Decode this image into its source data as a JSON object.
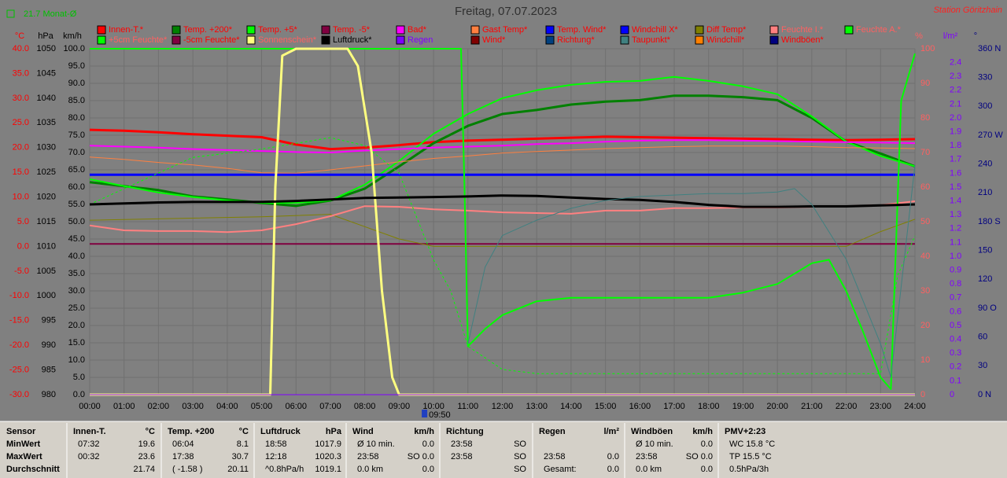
{
  "header": {
    "title": "Freitag, 07.07.2023",
    "station": "Station Göritzhain",
    "month_avg": "21.7 Monat-Ø"
  },
  "chart_data": {
    "type": "line",
    "xlim": [
      0,
      24
    ],
    "xticks": [
      {
        "value": 0,
        "label": "00:00"
      },
      {
        "value": 1,
        "label": "01:00"
      },
      {
        "value": 2,
        "label": "02:00"
      },
      {
        "value": 3,
        "label": "03:00"
      },
      {
        "value": 4,
        "label": "04:00"
      },
      {
        "value": 5,
        "label": "05:00"
      },
      {
        "value": 6,
        "label": "06:00"
      },
      {
        "value": 7,
        "label": "07:00"
      },
      {
        "value": 8,
        "label": "08:00"
      },
      {
        "value": 9,
        "label": "09:00"
      },
      {
        "value": 10,
        "label": "10:00"
      },
      {
        "value": 11,
        "label": "11:00"
      },
      {
        "value": 12,
        "label": "12:00"
      },
      {
        "value": 13,
        "label": "13:00"
      },
      {
        "value": 14,
        "label": "14:00"
      },
      {
        "value": 15,
        "label": "15:00"
      },
      {
        "value": 16,
        "label": "16:00"
      },
      {
        "value": 17,
        "label": "17:00"
      },
      {
        "value": 18,
        "label": "18:00"
      },
      {
        "value": 19,
        "label": "19:00"
      },
      {
        "value": 20,
        "label": "20:00"
      },
      {
        "value": 21,
        "label": "21:00"
      },
      {
        "value": 22,
        "label": "22:00"
      },
      {
        "value": 23,
        "label": "23:00"
      },
      {
        "value": 24,
        "label": "24:00"
      }
    ],
    "x": [
      0,
      1,
      2,
      3,
      4,
      5,
      6,
      7,
      8,
      9,
      10,
      11,
      12,
      13,
      14,
      15,
      16,
      17,
      18,
      19,
      20,
      21,
      22,
      23,
      24
    ],
    "grid": true,
    "marker": "09:50",
    "axes": [
      {
        "unit": "°C",
        "side": "left",
        "color": "#ff0000",
        "lim": [
          -30,
          40
        ],
        "ticks": [
          {
            "value": -30,
            "label": "-30.0"
          },
          {
            "value": -25,
            "label": "-25.0"
          },
          {
            "value": -20,
            "label": "-20.0"
          },
          {
            "value": -15,
            "label": "-15.0"
          },
          {
            "value": -10,
            "label": "-10.0"
          },
          {
            "value": -5,
            "label": "-5.0"
          },
          {
            "value": 0,
            "label": "0.0"
          },
          {
            "value": 5,
            "label": "5.0"
          },
          {
            "value": 10,
            "label": "10.0"
          },
          {
            "value": 15,
            "label": "15.0"
          },
          {
            "value": 20,
            "label": "20.0"
          },
          {
            "value": 25,
            "label": "25.0"
          },
          {
            "value": 30,
            "label": "30.0"
          },
          {
            "value": 35,
            "label": "35.0"
          },
          {
            "value": 40,
            "label": "40.0"
          }
        ]
      },
      {
        "unit": "hPa",
        "side": "left",
        "color": "#000000",
        "lim": [
          980,
          1050
        ],
        "ticks": [
          980,
          985,
          990,
          995,
          1000,
          1005,
          1010,
          1015,
          1020,
          1025,
          1030,
          1035,
          1040,
          1045,
          1050
        ]
      },
      {
        "unit": "km/h",
        "side": "left",
        "color": "#000000",
        "lim": [
          0,
          100
        ],
        "ticks": [
          {
            "value": 0,
            "label": "0.0"
          },
          {
            "value": 5,
            "label": "5.0"
          },
          {
            "value": 10,
            "label": "10.0"
          },
          {
            "value": 15,
            "label": "15.0"
          },
          {
            "value": 20,
            "label": "20.0"
          },
          {
            "value": 25,
            "label": "25.0"
          },
          {
            "value": 30,
            "label": "30.0"
          },
          {
            "value": 35,
            "label": "35.0"
          },
          {
            "value": 40,
            "label": "40.0"
          },
          {
            "value": 45,
            "label": "45.0"
          },
          {
            "value": 50,
            "label": "50.0"
          },
          {
            "value": 55,
            "label": "55.0"
          },
          {
            "value": 60,
            "label": "60.0"
          },
          {
            "value": 65,
            "label": "65.0"
          },
          {
            "value": 70,
            "label": "70.0"
          },
          {
            "value": 75,
            "label": "75.0"
          },
          {
            "value": 80,
            "label": "80.0"
          },
          {
            "value": 85,
            "label": "85.0"
          },
          {
            "value": 90,
            "label": "90.0"
          },
          {
            "value": 95,
            "label": "95.0"
          },
          {
            "value": 100,
            "label": "100.0"
          }
        ]
      },
      {
        "unit": "%",
        "side": "right",
        "color": "#ff6060",
        "lim": [
          0,
          100
        ],
        "ticks": [
          0,
          10,
          20,
          30,
          40,
          50,
          60,
          70,
          80,
          90,
          100
        ]
      },
      {
        "unit": "l/m²",
        "side": "right",
        "color": "#8000ff",
        "lim": [
          0,
          2.5
        ],
        "ticks": [
          0,
          0.1,
          0.2,
          0.3,
          0.4,
          0.5,
          0.6,
          0.7,
          0.8,
          0.9,
          {
            "value": 1,
            "label": "1.0"
          },
          1.1,
          1.2,
          1.3,
          1.4,
          1.5,
          1.6,
          1.7,
          1.8,
          1.9,
          {
            "value": 2,
            "label": "2.0"
          },
          2.1,
          2.2,
          2.3,
          2.4
        ]
      },
      {
        "unit": "°",
        "side": "right",
        "color": "#000080",
        "lim": [
          0,
          360
        ],
        "ticks": [
          {
            "value": 0,
            "label": "0 N"
          },
          30,
          60,
          {
            "value": 90,
            "label": "90 O"
          },
          120,
          150,
          {
            "value": 180,
            "label": "180 S"
          },
          210,
          240,
          {
            "value": 270,
            "label": "270 W"
          },
          300,
          330,
          {
            "value": 360,
            "label": "360 N"
          }
        ]
      }
    ],
    "series": [
      {
        "name": "Innen-T.*",
        "color": "#ff0000",
        "axis": 0,
        "width": 3,
        "values": [
          23.6,
          23.4,
          23.1,
          22.7,
          22.4,
          22.1,
          20.6,
          19.7,
          20.0,
          20.5,
          21.1,
          21.4,
          21.6,
          21.8,
          22.0,
          22.2,
          22.1,
          22.0,
          21.9,
          21.8,
          21.7,
          21.6,
          21.5,
          21.6,
          21.7
        ]
      },
      {
        "name": "Temp. +200*",
        "color": "#008000",
        "axis": 0,
        "width": 3,
        "values": [
          13.0,
          12.2,
          11.4,
          10.1,
          9.5,
          8.8,
          8.2,
          9.3,
          11.7,
          16.2,
          20.9,
          24.4,
          26.8,
          27.6,
          28.7,
          29.3,
          29.6,
          30.5,
          30.5,
          30.2,
          29.6,
          26.0,
          21.2,
          18.8,
          16.2
        ]
      },
      {
        "name": "Temp. +5*",
        "color": "#00ff00",
        "axis": 0,
        "width": 2,
        "values": [
          13.6,
          12.2,
          10.9,
          10.0,
          9.3,
          8.8,
          8.8,
          9.3,
          12.5,
          17.3,
          22.8,
          26.8,
          30.0,
          31.6,
          32.7,
          33.3,
          33.5,
          34.3,
          33.5,
          32.4,
          30.8,
          26.3,
          21.2,
          18.3,
          16.2
        ]
      },
      {
        "name": "Temp. -5*",
        "color": "#800040",
        "axis": 0,
        "width": 2,
        "x": [
          0,
          24
        ],
        "values": [
          0.5,
          0.5
        ]
      },
      {
        "name": "Bad*",
        "color": "#ff00ff",
        "axis": 0,
        "width": 2,
        "values": [
          20.4,
          20.2,
          20.0,
          19.7,
          19.5,
          19.3,
          19.1,
          19.0,
          19.4,
          19.7,
          20.0,
          20.2,
          20.4,
          20.7,
          20.9,
          21.2,
          21.4,
          21.5,
          21.5,
          21.4,
          21.3,
          21.2,
          21.1,
          21.0,
          20.9
        ]
      },
      {
        "name": "Gast Temp*",
        "color": "#ff8040",
        "axis": 0,
        "width": 1,
        "values": [
          18.1,
          17.6,
          17.0,
          16.5,
          15.8,
          14.9,
          14.8,
          15.5,
          16.3,
          17.1,
          17.8,
          18.3,
          18.9,
          19.2,
          19.5,
          19.8,
          20.0,
          20.2,
          20.3,
          20.3,
          20.3,
          20.2,
          20.0,
          19.9,
          19.8
        ]
      },
      {
        "name": "Temp. Wind*",
        "color": "#0000ff"
      },
      {
        "name": "Windchill X*",
        "color": "#0000ff",
        "axis": 0,
        "width": 3,
        "x": [
          0,
          24
        ],
        "values": [
          14.5,
          14.5
        ]
      },
      {
        "name": "Diff Temp*",
        "color": "#808000",
        "axis": 0,
        "width": 1,
        "x": [
          0,
          5,
          7,
          8,
          9,
          10,
          22,
          23,
          24
        ],
        "values": [
          5.3,
          6.0,
          6.5,
          4.0,
          1.5,
          0,
          0,
          3,
          5.5
        ]
      },
      {
        "name": "Feuchte I.*",
        "color": "#ff8080",
        "axis": 3,
        "width": 2,
        "values": [
          48.9,
          47.5,
          47.3,
          47.3,
          47.0,
          47.5,
          49.3,
          51.6,
          54.5,
          54.3,
          53.6,
          53.2,
          52.7,
          52.5,
          52.3,
          53.2,
          53.2,
          53.9,
          53.9,
          54.1,
          54.1,
          54.3,
          54.5,
          54.8,
          55.9
        ]
      },
      {
        "name": "Feuchte A.*",
        "color": "#00ff00",
        "axis": 3,
        "width": 2,
        "x": [
          0,
          10.8,
          10.9,
          11,
          11.5,
          12,
          13,
          14,
          15,
          16,
          17,
          18,
          19,
          20,
          21,
          21.5,
          22,
          22.5,
          23,
          23.3,
          23.4,
          23.6,
          24
        ],
        "values": [
          100,
          100,
          60,
          14,
          19,
          23,
          27,
          28,
          28,
          28,
          28,
          28,
          29.5,
          32,
          38,
          39,
          30,
          18,
          5,
          1.6,
          30,
          85,
          98.6
        ]
      },
      {
        "name": "+5cm Feuchte*",
        "color": "#00ff00",
        "axis": 3,
        "width": 1,
        "dash": true,
        "x": [
          0,
          3,
          5,
          7,
          8,
          9,
          10,
          10.5,
          11,
          12,
          13,
          22,
          23,
          23.5,
          24
        ],
        "values": [
          55,
          68.6,
          71,
          74.3,
          72,
          64,
          39,
          30,
          14,
          7.3,
          6.1,
          6.1,
          6.1,
          34.5,
          45.9
        ]
      },
      {
        "name": "-5cm Feuchte*",
        "color": "#800040"
      },
      {
        "name": "Sonnenschein*",
        "color": "#ffff80",
        "axis": 3,
        "width": 3,
        "x": [
          0,
          5.25,
          5.4,
          5.6,
          6,
          7.5,
          7.8,
          8.2,
          8.5,
          8.8,
          9,
          24
        ],
        "values": [
          0,
          0,
          60,
          98,
          100,
          100,
          95,
          70,
          30,
          5,
          0,
          0
        ]
      },
      {
        "name": "Luftdruck*",
        "color": "#000000",
        "axis": 1,
        "width": 3,
        "values": [
          1018.5,
          1018.7,
          1018.9,
          1019.0,
          1019.0,
          1019.0,
          1019.2,
          1019.5,
          1019.8,
          1019.9,
          1020.0,
          1020.1,
          1020.3,
          1020.2,
          1019.9,
          1019.6,
          1019.4,
          1019.0,
          1018.4,
          1018.0,
          1018.0,
          1018.1,
          1018.1,
          1018.3,
          1018.5
        ]
      },
      {
        "name": "Regen",
        "color": "#8000ff",
        "axis": 4,
        "width": 1,
        "x": [
          0,
          24
        ],
        "values": [
          0,
          0
        ]
      },
      {
        "name": "Wind*",
        "color": "#800000"
      },
      {
        "name": "Richtung*",
        "color": "#004080"
      },
      {
        "name": "Taupunkt*",
        "color": "#408080",
        "axis": 0,
        "width": 1,
        "x": [
          11,
          11.5,
          12,
          13,
          14,
          15,
          16,
          17,
          18,
          19,
          20,
          20.5,
          21,
          22,
          23,
          23.3,
          24
        ],
        "values": [
          -19.7,
          -4.2,
          2.2,
          5.3,
          7.7,
          9.3,
          10.1,
          10.4,
          10.7,
          10.7,
          11.0,
          11.7,
          8.5,
          -2.6,
          -19.7,
          -26.5,
          16.5
        ]
      },
      {
        "name": "Windchill*",
        "color": "#ff8000"
      },
      {
        "name": "Windböen*",
        "color": "#000080"
      }
    ]
  },
  "stats": {
    "row_labels": [
      "Sensor",
      "MinWert",
      "MaxWert",
      "Durchschnitt"
    ],
    "columns": [
      {
        "title": "Innen-T.",
        "unit": "°C",
        "cells": [
          [
            "07:32",
            "19.6"
          ],
          [
            "00:32",
            "23.6"
          ],
          [
            null,
            "21.74"
          ]
        ]
      },
      {
        "title": "Temp. +200",
        "unit": "°C",
        "cells": [
          [
            "06:04",
            "8.1"
          ],
          [
            "17:38",
            "30.7"
          ],
          [
            "( -1.58 )",
            "20.11"
          ]
        ]
      },
      {
        "title": "Luftdruck",
        "unit": "hPa",
        "cells": [
          [
            "18:58",
            "1017.9"
          ],
          [
            "12:18",
            "1020.3"
          ],
          [
            "^0.8hPa/h",
            "1019.1"
          ]
        ]
      },
      {
        "title": "Wind",
        "unit": "km/h",
        "cells": [
          [
            "Ø 10 min.",
            "0.0"
          ],
          [
            "23:58",
            "SO 0.0"
          ],
          [
            "0.0 km",
            "0.0"
          ]
        ]
      },
      {
        "title": "Richtung",
        "unit": null,
        "cells": [
          [
            "23:58",
            "SO"
          ],
          [
            "23:58",
            "SO"
          ],
          [
            null,
            "SO"
          ]
        ]
      },
      {
        "title": "Regen",
        "unit": "l/m²",
        "cells": [
          [
            null,
            null
          ],
          [
            "23:58",
            "0.0"
          ],
          [
            "Gesamt:",
            "0.0"
          ]
        ]
      },
      {
        "title": "Windböen",
        "unit": "km/h",
        "cells": [
          [
            "Ø 10 min.",
            "0.0"
          ],
          [
            "23:58",
            "SO 0.0"
          ],
          [
            "0.0 km",
            "0.0"
          ]
        ]
      },
      {
        "title": "PMV+2:23",
        "unit": null,
        "cells": [
          [
            "WC 15.8 °C"
          ],
          [
            "TP 15.5 °C"
          ],
          [
            "0.5hPa/3h"
          ]
        ]
      }
    ]
  }
}
